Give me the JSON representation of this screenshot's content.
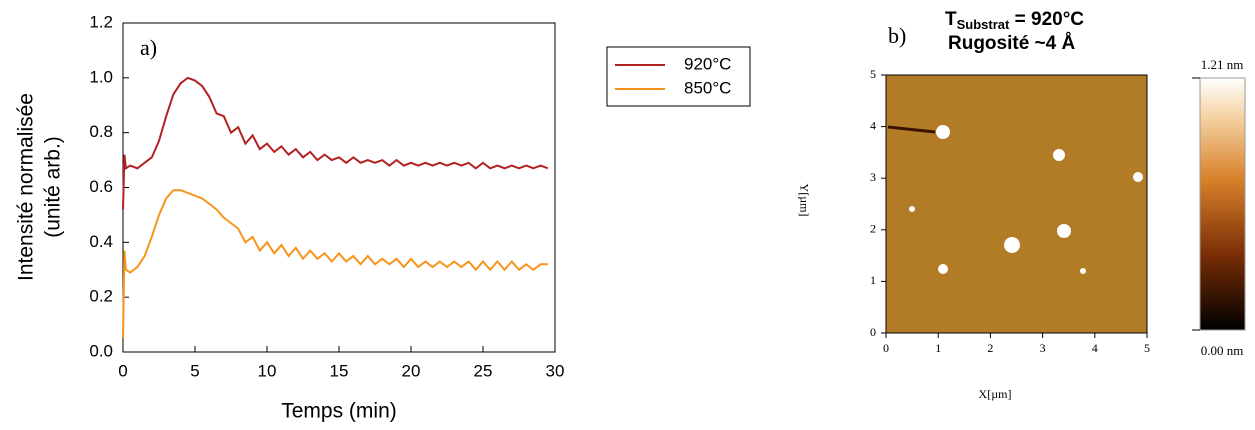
{
  "chart_data": [
    {
      "type": "line",
      "annotation": "a)",
      "xlabel": "Temps (min)",
      "ylabel": [
        "Intensité normalisée",
        "(unité arb.)"
      ],
      "x": [
        0,
        0.1,
        0.2,
        0.5,
        1,
        1.5,
        2,
        2.5,
        3,
        3.5,
        4,
        4.5,
        5,
        5.5,
        6,
        6.5,
        7,
        7.5,
        8,
        8.5,
        9,
        9.5,
        10,
        10.5,
        11,
        11.5,
        12,
        12.5,
        13,
        13.5,
        14,
        14.5,
        15,
        15.5,
        16,
        16.5,
        17,
        17.5,
        18,
        18.5,
        19,
        19.5,
        20,
        20.5,
        21,
        21.5,
        22,
        22.5,
        23,
        23.5,
        24,
        24.5,
        25,
        25.5,
        26,
        26.5,
        27,
        27.5,
        28,
        28.5,
        29,
        29.5
      ],
      "series": [
        {
          "name": "920°C",
          "color": "#b22222",
          "values": [
            0.52,
            0.72,
            0.67,
            0.68,
            0.67,
            0.69,
            0.71,
            0.77,
            0.86,
            0.94,
            0.98,
            1.0,
            0.99,
            0.97,
            0.93,
            0.87,
            0.86,
            0.8,
            0.82,
            0.76,
            0.79,
            0.74,
            0.76,
            0.73,
            0.75,
            0.72,
            0.74,
            0.71,
            0.73,
            0.7,
            0.72,
            0.7,
            0.71,
            0.69,
            0.71,
            0.69,
            0.7,
            0.69,
            0.7,
            0.68,
            0.7,
            0.68,
            0.69,
            0.68,
            0.69,
            0.68,
            0.69,
            0.68,
            0.69,
            0.68,
            0.69,
            0.67,
            0.69,
            0.67,
            0.68,
            0.67,
            0.68,
            0.67,
            0.68,
            0.67,
            0.68,
            0.67
          ]
        },
        {
          "name": "850°C",
          "color": "#f7941d",
          "values": [
            0.05,
            0.37,
            0.3,
            0.29,
            0.31,
            0.35,
            0.42,
            0.5,
            0.56,
            0.59,
            0.59,
            0.58,
            0.57,
            0.56,
            0.54,
            0.52,
            0.49,
            0.47,
            0.45,
            0.4,
            0.42,
            0.37,
            0.4,
            0.36,
            0.39,
            0.35,
            0.38,
            0.34,
            0.37,
            0.34,
            0.36,
            0.33,
            0.36,
            0.33,
            0.35,
            0.32,
            0.35,
            0.32,
            0.34,
            0.32,
            0.34,
            0.31,
            0.34,
            0.31,
            0.33,
            0.31,
            0.33,
            0.31,
            0.33,
            0.31,
            0.33,
            0.3,
            0.33,
            0.3,
            0.33,
            0.3,
            0.33,
            0.3,
            0.32,
            0.3,
            0.32,
            0.32
          ]
        }
      ],
      "xlim": [
        0,
        30
      ],
      "xticks": [
        0,
        5,
        10,
        15,
        20,
        25,
        30
      ],
      "ylim": [
        0,
        1.2
      ],
      "yticks": [
        {
          "value": 0,
          "label": "0.0"
        },
        0.2,
        0.4,
        0.6,
        0.8,
        {
          "value": 1,
          "label": "1.0"
        },
        1.2
      ],
      "legend": "top-right"
    },
    {
      "type": "image",
      "annotation": "b)",
      "title": {
        "symbol": "T",
        "subscript": "Substrat",
        "text": " = 920°C"
      },
      "subtitle": "Rugosité ~4 Å",
      "xlabel": "X[µm]",
      "ylabel": "Y[µm]",
      "xlim": [
        0,
        5
      ],
      "xticks": [
        0,
        1,
        2,
        3,
        4,
        5
      ],
      "ylim": [
        0,
        5
      ],
      "yticks": [
        0,
        1,
        2,
        3,
        4,
        5
      ],
      "colorbar": {
        "lim": [
          0,
          1.21
        ],
        "ticks": [
          {
            "value": 0,
            "label": "0.00 nm"
          },
          {
            "value": 1.21,
            "label": "1.21 nm"
          }
        ]
      }
    }
  ]
}
